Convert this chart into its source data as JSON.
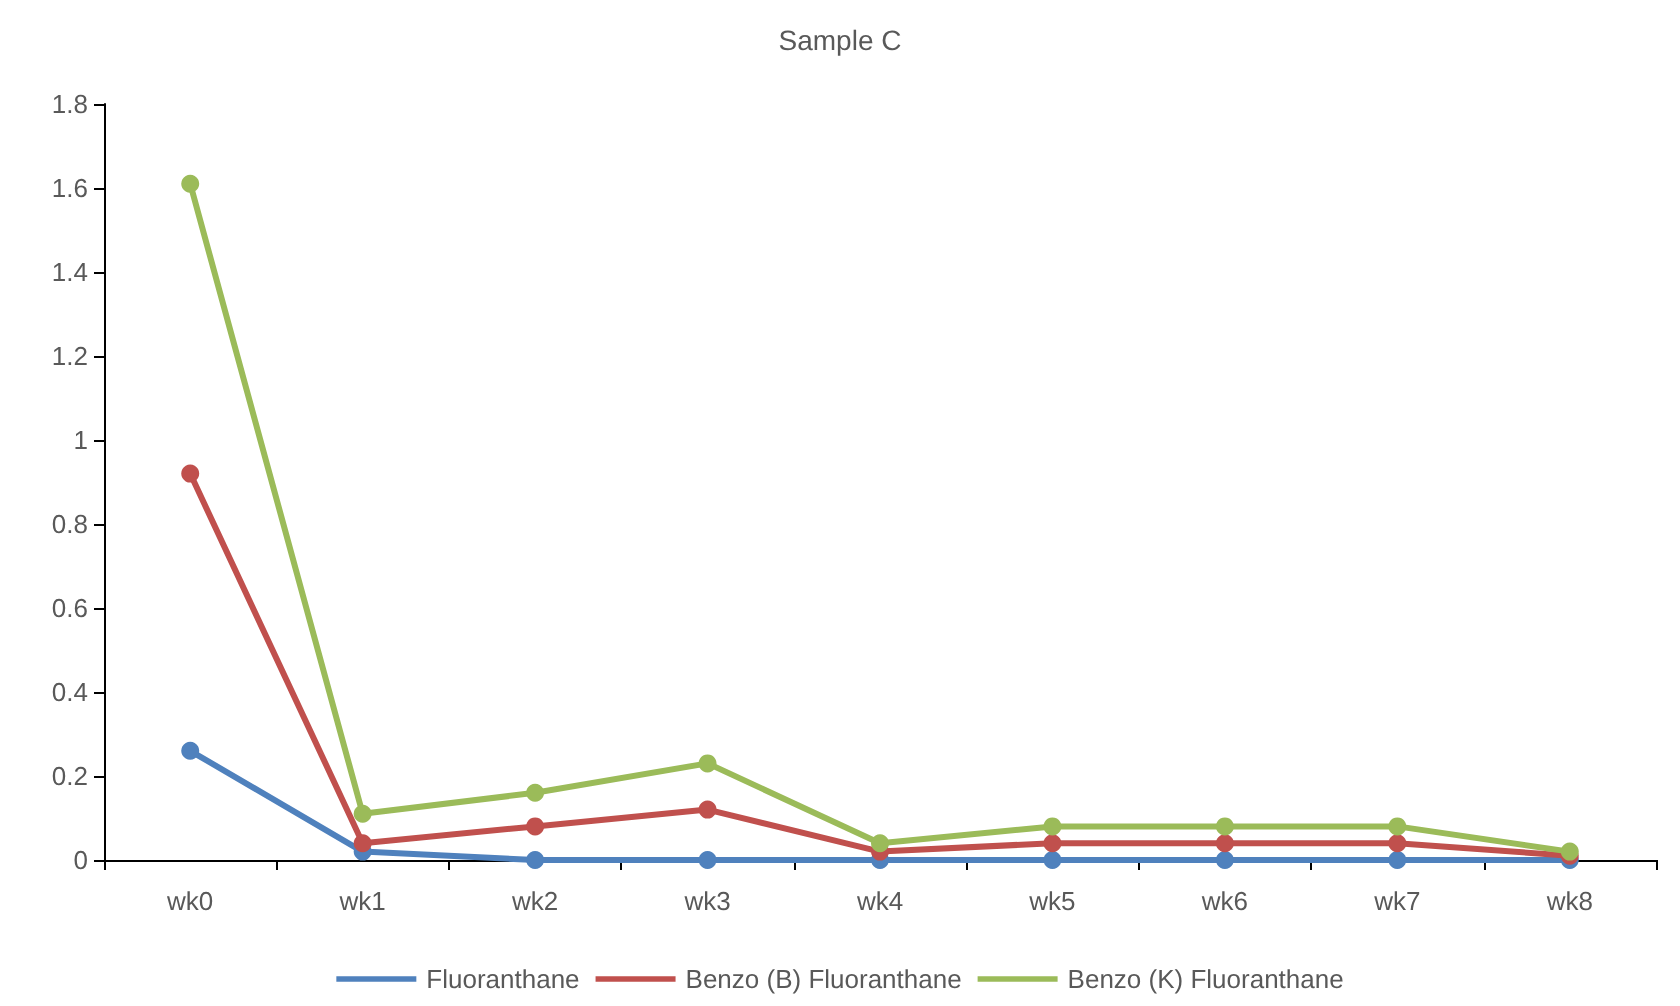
{
  "chart_data": {
    "type": "line",
    "title": "Sample C",
    "categories": [
      "wk0",
      "wk1",
      "wk2",
      "wk3",
      "wk4",
      "wk5",
      "wk6",
      "wk7",
      "wk8"
    ],
    "series": [
      {
        "name": "Fluoranthane",
        "color": "#4f81bd",
        "values": [
          0.26,
          0.02,
          0,
          0,
          0,
          0,
          0,
          0,
          0
        ]
      },
      {
        "name": "Benzo (B) Fluoranthane",
        "color": "#c0504d",
        "values": [
          0.92,
          0.04,
          0.08,
          0.12,
          0.02,
          0.04,
          0.04,
          0.04,
          0.01
        ]
      },
      {
        "name": "Benzo (K) Fluoranthane",
        "color": "#9bbb59",
        "values": [
          1.61,
          0.11,
          0.16,
          0.23,
          0.04,
          0.08,
          0.08,
          0.08,
          0.02
        ]
      }
    ],
    "ylim": [
      0,
      1.8
    ],
    "yticks": [
      0,
      0.2,
      0.4,
      0.6,
      0.8,
      1,
      1.2,
      1.4,
      1.6,
      1.8
    ],
    "grid": false,
    "legend": "bottom",
    "marker": "circle",
    "line_style": "solid"
  }
}
